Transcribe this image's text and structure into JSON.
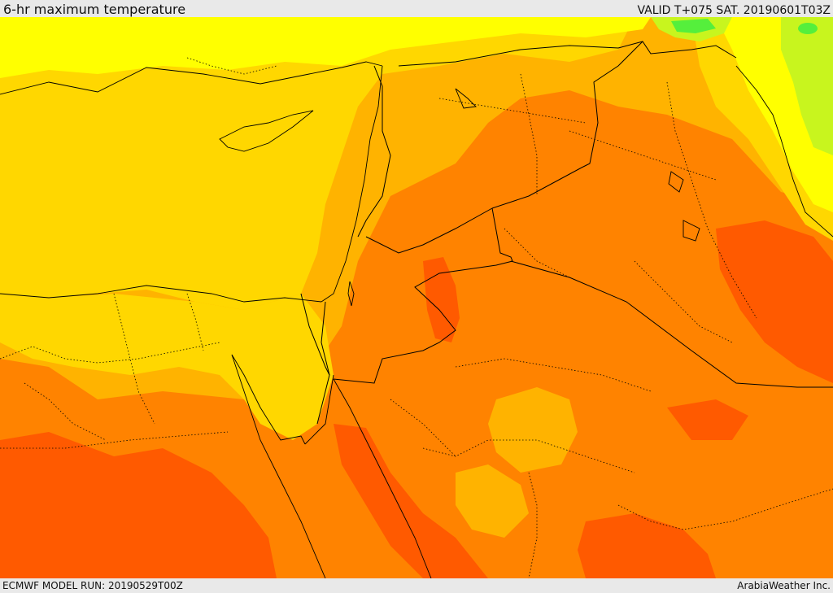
{
  "header": {
    "title": "6-hr maximum temperature",
    "valid": "VALID T+075 SAT. 20190601T03Z"
  },
  "footer": {
    "model_run": "ECMWF MODEL RUN: 20190529T00Z",
    "credit": "ArabiaWeather Inc."
  },
  "palette": {
    "cool_green": "#55ef3c",
    "lime": "#c8f51e",
    "light_yellow": "#ffff00",
    "yellow": "#ffd700",
    "light_orange": "#ffb300",
    "orange": "#ff8300",
    "dark_orange": "#ff5a00",
    "border_line": "#000000"
  }
}
